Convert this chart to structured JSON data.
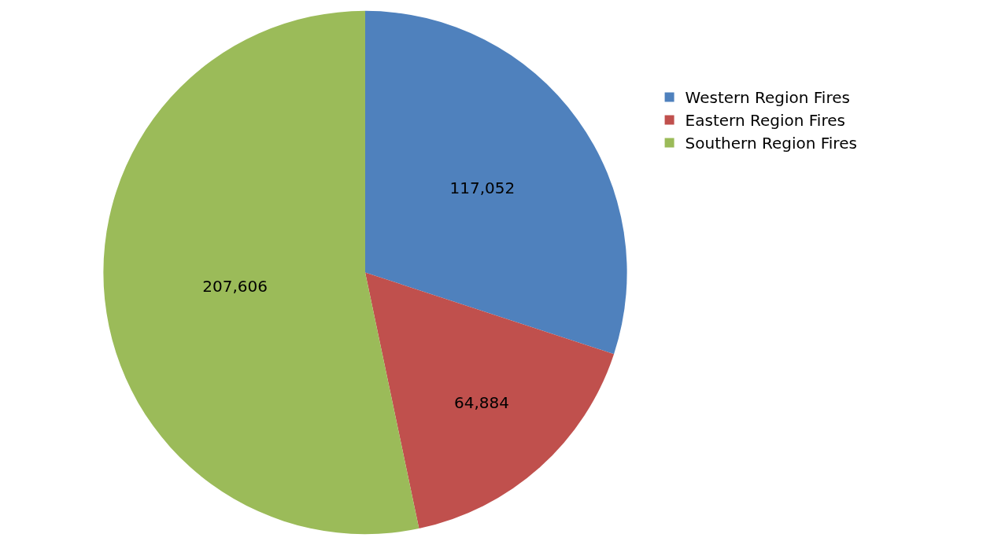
{
  "chart_data": {
    "type": "pie",
    "categories": [
      "Western Region Fires",
      "Eastern Region Fires",
      "Southern Region Fires"
    ],
    "values": [
      117052,
      64884,
      207606
    ],
    "colors": [
      "#4f81bd",
      "#c0504d",
      "#9bbb59"
    ],
    "value_labels": [
      "117,052",
      "64,884",
      "207,606"
    ],
    "legend": "right"
  }
}
